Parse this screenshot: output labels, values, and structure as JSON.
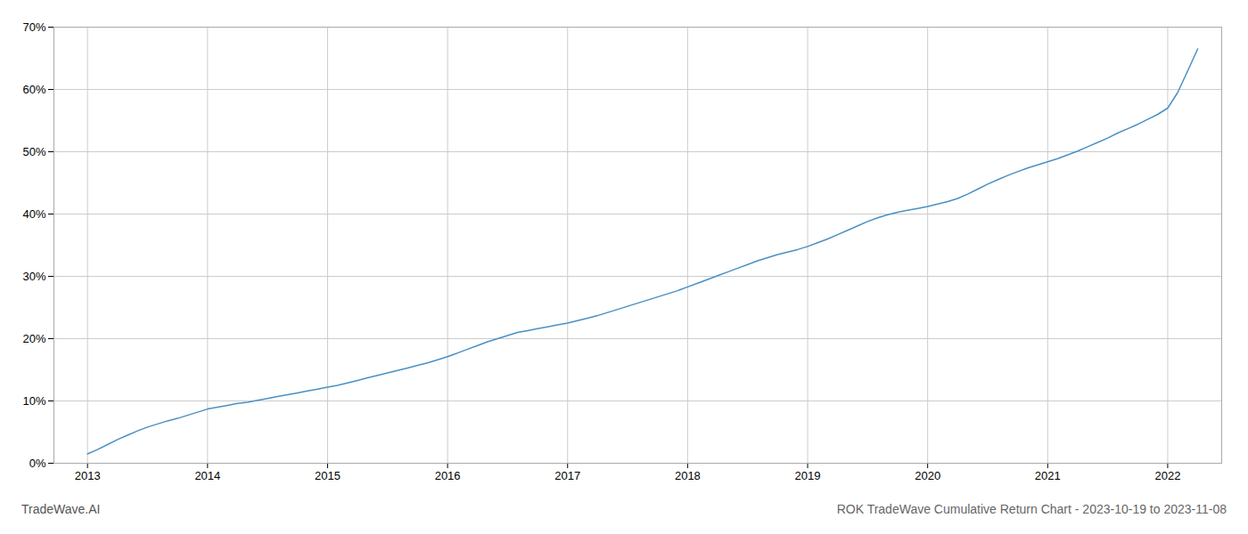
{
  "chart_data": {
    "type": "line",
    "title": "ROK TradeWave Cumulative Return Chart - 2023-10-19 to 2023-11-08",
    "annotations": [
      "TradeWave.AI"
    ],
    "color": "#4a90c4",
    "grid": true,
    "x": [
      2013.0,
      2013.083,
      2013.167,
      2013.25,
      2013.333,
      2013.417,
      2013.5,
      2013.583,
      2013.667,
      2013.75,
      2013.833,
      2013.917,
      2014.0,
      2014.083,
      2014.167,
      2014.25,
      2014.333,
      2014.417,
      2014.5,
      2014.583,
      2014.667,
      2014.75,
      2014.833,
      2014.917,
      2015.0,
      2015.083,
      2015.167,
      2015.25,
      2015.333,
      2015.417,
      2015.5,
      2015.583,
      2015.667,
      2015.75,
      2015.833,
      2015.917,
      2016.0,
      2016.083,
      2016.167,
      2016.25,
      2016.333,
      2016.417,
      2016.5,
      2016.583,
      2016.667,
      2016.75,
      2016.833,
      2016.917,
      2017.0,
      2017.083,
      2017.167,
      2017.25,
      2017.333,
      2017.417,
      2017.5,
      2017.583,
      2017.667,
      2017.75,
      2017.833,
      2017.917,
      2018.0,
      2018.083,
      2018.167,
      2018.25,
      2018.333,
      2018.417,
      2018.5,
      2018.583,
      2018.667,
      2018.75,
      2018.833,
      2018.917,
      2019.0,
      2019.083,
      2019.167,
      2019.25,
      2019.333,
      2019.417,
      2019.5,
      2019.583,
      2019.667,
      2019.75,
      2019.833,
      2019.917,
      2020.0,
      2020.083,
      2020.167,
      2020.25,
      2020.333,
      2020.417,
      2020.5,
      2020.583,
      2020.667,
      2020.75,
      2020.833,
      2020.917,
      2021.0,
      2021.083,
      2021.167,
      2021.25,
      2021.333,
      2021.417,
      2021.5,
      2021.583,
      2021.667,
      2021.75,
      2021.833,
      2021.917,
      2022.0,
      2022.083,
      2022.167,
      2022.25
    ],
    "values": [
      1.5,
      2.2,
      3.0,
      3.8,
      4.5,
      5.2,
      5.8,
      6.3,
      6.8,
      7.2,
      7.7,
      8.2,
      8.7,
      9.0,
      9.3,
      9.6,
      9.8,
      10.1,
      10.4,
      10.7,
      11.0,
      11.3,
      11.6,
      11.9,
      12.2,
      12.5,
      12.9,
      13.3,
      13.7,
      14.1,
      14.5,
      14.9,
      15.3,
      15.7,
      16.1,
      16.6,
      17.1,
      17.7,
      18.3,
      18.9,
      19.5,
      20.0,
      20.5,
      21.0,
      21.3,
      21.6,
      21.9,
      22.2,
      22.5,
      22.9,
      23.3,
      23.7,
      24.2,
      24.7,
      25.2,
      25.7,
      26.2,
      26.7,
      27.2,
      27.7,
      28.3,
      28.9,
      29.5,
      30.1,
      30.7,
      31.3,
      31.9,
      32.5,
      33.0,
      33.5,
      33.9,
      34.3,
      34.8,
      35.4,
      36.0,
      36.7,
      37.4,
      38.1,
      38.8,
      39.4,
      39.9,
      40.3,
      40.6,
      40.9,
      41.2,
      41.6,
      42.0,
      42.5,
      43.2,
      44.0,
      44.8,
      45.5,
      46.2,
      46.8,
      47.4,
      47.9,
      48.4,
      48.9,
      49.5,
      50.1,
      50.8,
      51.5,
      52.2,
      53.0,
      53.7,
      54.4,
      55.2,
      56.0,
      57.0,
      59.5,
      63.0,
      66.5
    ],
    "xlim": [
      2012.72,
      2022.45
    ],
    "xticks": [
      2013,
      2014,
      2015,
      2016,
      2017,
      2018,
      2019,
      2020,
      2021,
      2022
    ],
    "ylim": [
      0,
      70
    ],
    "yticks": [
      {
        "value": 0,
        "label": "0%"
      },
      {
        "value": 10,
        "label": "10%"
      },
      {
        "value": 20,
        "label": "20%"
      },
      {
        "value": 30,
        "label": "30%"
      },
      {
        "value": 40,
        "label": "40%"
      },
      {
        "value": 50,
        "label": "50%"
      },
      {
        "value": 60,
        "label": "60%"
      },
      {
        "value": 70,
        "label": "70%"
      }
    ]
  }
}
